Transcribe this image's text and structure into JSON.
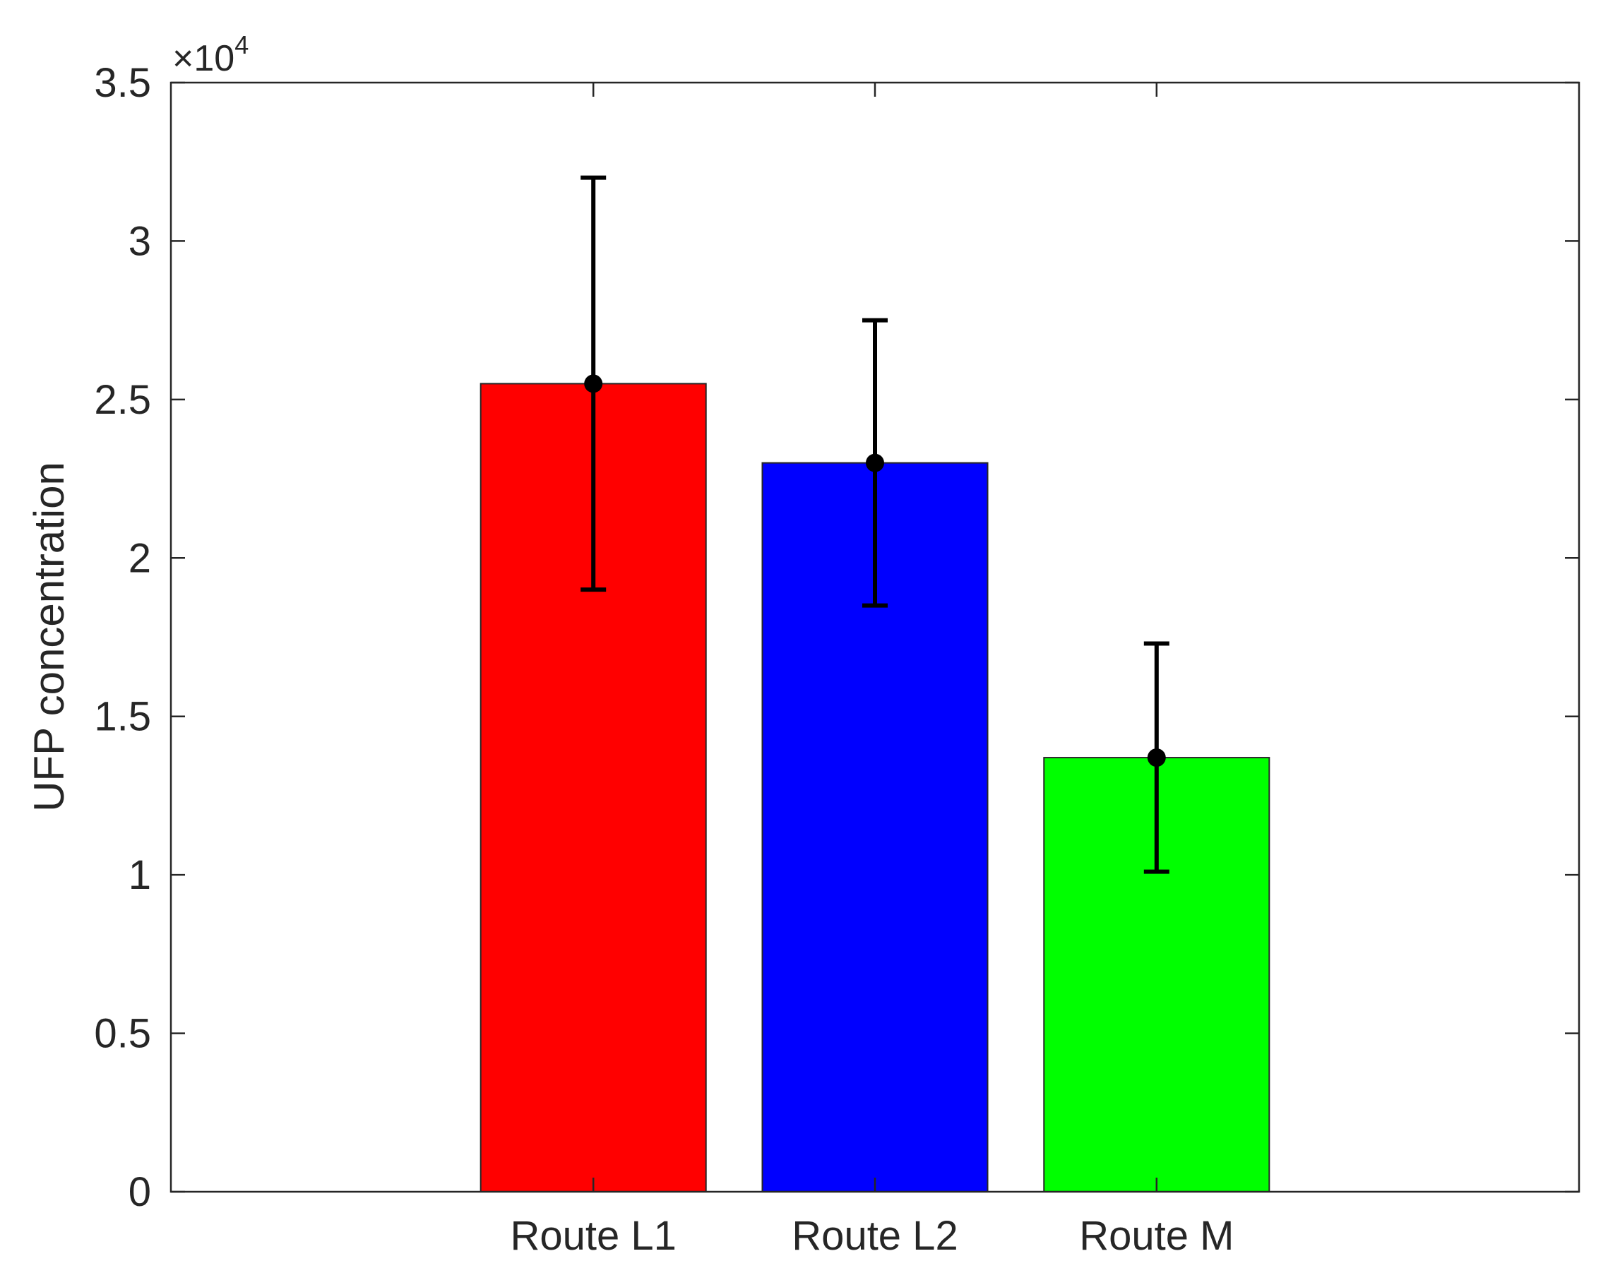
{
  "chart_data": {
    "type": "bar",
    "categories": [
      "Route L1",
      "Route L2",
      "Route M"
    ],
    "values": [
      25500,
      23000,
      13700
    ],
    "error_low": [
      19000,
      18500,
      10100
    ],
    "error_high": [
      32000,
      27500,
      17300
    ],
    "colors": [
      "#ff0000",
      "#0000ff",
      "#00ff00"
    ],
    "title": "",
    "xlabel": "",
    "ylabel": "UFP concentration",
    "ylim": [
      0,
      35000
    ],
    "xlim": [
      0,
      5
    ],
    "x_positions": [
      1.5,
      2.5,
      3.5
    ],
    "yticks": [
      0,
      5000,
      10000,
      15000,
      20000,
      25000,
      30000,
      35000
    ],
    "ytick_labels": [
      "0",
      "0.5",
      "1",
      "1.5",
      "2",
      "2.5",
      "3",
      "3.5"
    ],
    "y_exponent_label": "×10",
    "y_exponent_power": "4",
    "grid": false,
    "legend": "none"
  }
}
